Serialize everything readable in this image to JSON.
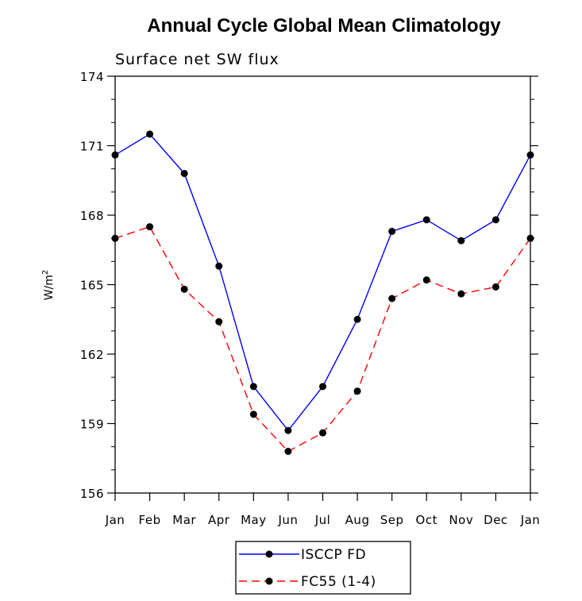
{
  "chart_data": {
    "type": "line",
    "title": "Annual Cycle Global Mean Climatology",
    "subtitle": "Surface net SW flux",
    "xlabel": "",
    "ylabel": "W/m",
    "ylabel_sup": "2",
    "categories": [
      "Jan",
      "Feb",
      "Mar",
      "Apr",
      "May",
      "Jun",
      "Jul",
      "Aug",
      "Sep",
      "Oct",
      "Nov",
      "Dec",
      "Jan"
    ],
    "ylim": [
      156,
      174
    ],
    "yticks": [
      156,
      159,
      162,
      165,
      168,
      171,
      174
    ],
    "grid": false,
    "legend_position": "bottom-center",
    "series": [
      {
        "name": "ISCCP FD",
        "color": "#0000ff",
        "line_style": "solid",
        "values": [
          170.6,
          171.5,
          169.8,
          165.8,
          160.6,
          158.7,
          160.6,
          163.5,
          167.3,
          167.8,
          166.9,
          167.8,
          170.6
        ]
      },
      {
        "name": "FC55 (1-4)",
        "color": "#ff0000",
        "line_style": "dashed",
        "values": [
          167.0,
          167.5,
          164.8,
          163.4,
          159.4,
          157.8,
          158.6,
          160.4,
          164.4,
          165.2,
          164.6,
          164.9,
          167.0
        ]
      }
    ]
  }
}
